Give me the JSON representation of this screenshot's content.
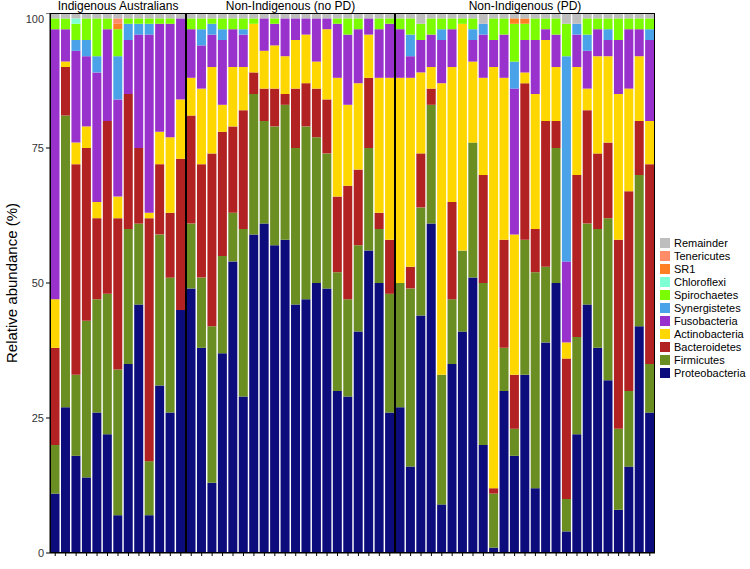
{
  "chart_data": [
    {
      "type": "bar",
      "title": "Indigenous Australians",
      "stacked": true,
      "ylabel": "Relative abundance (%)",
      "tick_labels": "y",
      "ylim": [
        0,
        100
      ],
      "yticks": [
        0,
        25,
        50,
        75,
        100
      ],
      "categories": [
        null,
        null,
        null,
        null,
        null,
        null,
        null,
        null,
        null,
        null,
        null,
        null,
        null
      ],
      "series": [
        {
          "name": "Proteobacteria",
          "color": "#0c0c7c",
          "values": [
            11,
            27,
            18,
            14,
            26,
            22,
            7,
            35,
            46,
            7,
            31,
            26,
            45
          ]
        },
        {
          "name": "Firmicutes",
          "color": "#6b8e23",
          "values": [
            9,
            54,
            15,
            29,
            21,
            26,
            27,
            25,
            15,
            10,
            28,
            25,
            0
          ]
        },
        {
          "name": "Bacteroidetes",
          "color": "#b22222",
          "values": [
            18,
            9,
            39,
            32,
            15,
            32,
            28,
            25,
            14,
            45,
            13,
            12,
            28
          ]
        },
        {
          "name": "Actinobacteria",
          "color": "#ffd700",
          "values": [
            9,
            1,
            4,
            4,
            3,
            0,
            4,
            0,
            0,
            1,
            6,
            14,
            11
          ]
        },
        {
          "name": "Fusobacteria",
          "color": "#9932cc",
          "values": [
            50,
            6,
            17,
            13,
            24,
            17,
            18,
            10,
            21,
            33,
            20,
            21,
            15
          ]
        },
        {
          "name": "Synergistetes",
          "color": "#4aa3e8",
          "values": [
            0,
            0,
            2,
            3,
            3,
            0,
            8,
            3,
            2,
            2,
            0,
            0,
            0
          ]
        },
        {
          "name": "Spirochaetes",
          "color": "#7cfc00",
          "values": [
            2,
            2,
            3,
            4,
            7,
            2,
            5,
            1,
            1,
            1,
            1,
            1,
            0
          ]
        },
        {
          "name": "Chloroflexi",
          "color": "#7fffd4",
          "values": [
            0,
            0,
            1,
            0,
            0,
            0,
            0,
            0,
            0,
            0,
            0,
            0,
            0
          ]
        },
        {
          "name": "SR1",
          "color": "#ff7f24",
          "values": [
            0,
            0,
            0,
            0,
            0,
            0,
            1,
            0,
            0,
            0,
            0,
            0,
            0
          ]
        },
        {
          "name": "Tenericutes",
          "color": "#ff8c69",
          "values": [
            0,
            0,
            0,
            0,
            0,
            0,
            1,
            0,
            0,
            0,
            0,
            0,
            0
          ]
        },
        {
          "name": "Remainder",
          "color": "#bebebe",
          "values": [
            1,
            1,
            1,
            1,
            1,
            1,
            1,
            1,
            1,
            1,
            1,
            1,
            1
          ]
        }
      ]
    },
    {
      "type": "bar",
      "title": "Non-Indigenous (no PD)",
      "stacked": true,
      "tick_labels": false,
      "ylim": [
        0,
        100
      ],
      "yticks": [
        0,
        25,
        50,
        75,
        100
      ],
      "categories": [
        null,
        null,
        null,
        null,
        null,
        null,
        null,
        null,
        null,
        null,
        null,
        null,
        null,
        null,
        null,
        null,
        null,
        null,
        null,
        null
      ],
      "series": [
        {
          "name": "Proteobacteria",
          "color": "#0c0c7c",
          "values": [
            49,
            38,
            13,
            37,
            54,
            29,
            59,
            61,
            57,
            58,
            46,
            47,
            50,
            49,
            30,
            29,
            41,
            56,
            50,
            26
          ]
        },
        {
          "name": "Firmicutes",
          "color": "#6b8e23",
          "values": [
            12,
            13,
            29,
            18,
            9,
            31,
            26,
            19,
            22,
            25,
            29,
            32,
            27,
            25,
            22,
            18,
            16,
            19,
            10,
            22
          ]
        },
        {
          "name": "Bacteroidetes",
          "color": "#b22222",
          "values": [
            20,
            21,
            32,
            23,
            16,
            22,
            4,
            6,
            7,
            2,
            11,
            8,
            9,
            10,
            14,
            21,
            14,
            13,
            3,
            10
          ]
        },
        {
          "name": "Actinobacteria",
          "color": "#ffd700",
          "values": [
            7,
            14,
            16,
            5,
            11,
            8,
            9,
            7,
            8,
            7,
            9,
            9,
            5,
            13,
            22,
            15,
            16,
            8,
            25,
            30
          ]
        },
        {
          "name": "Fusobacteria",
          "color": "#9932cc",
          "values": [
            9,
            8,
            6,
            12,
            7,
            6,
            0,
            6,
            4,
            7,
            4,
            3,
            8,
            2,
            10,
            13,
            10,
            3,
            9,
            10
          ]
        },
        {
          "name": "Synergistetes",
          "color": "#4aa3e8",
          "values": [
            0,
            3,
            2,
            2,
            0,
            1,
            0,
            0,
            0,
            0,
            0,
            0,
            0,
            0,
            0,
            0,
            0,
            0,
            0,
            0
          ]
        },
        {
          "name": "Spirochaetes",
          "color": "#7cfc00",
          "values": [
            2,
            2,
            1,
            2,
            2,
            2,
            1,
            0,
            1,
            0,
            0,
            0,
            0,
            0,
            1,
            3,
            2,
            0,
            2,
            1
          ]
        },
        {
          "name": "Chloroflexi",
          "color": "#7fffd4",
          "values": [
            0,
            0,
            0,
            0,
            0,
            0,
            0,
            0,
            0,
            0,
            0,
            0,
            0,
            0,
            0,
            0,
            0,
            0,
            0,
            0
          ]
        },
        {
          "name": "SR1",
          "color": "#ff7f24",
          "values": [
            0,
            0,
            0,
            0,
            0,
            0,
            0,
            0,
            0,
            0,
            0,
            0,
            0,
            0,
            0,
            0,
            0,
            0,
            0,
            0
          ]
        },
        {
          "name": "Tenericutes",
          "color": "#ff8c69",
          "values": [
            0,
            0,
            0,
            0,
            0,
            0,
            0,
            0,
            0,
            0,
            0,
            0,
            0,
            0,
            0,
            0,
            0,
            0,
            0,
            0
          ]
        },
        {
          "name": "Remainder",
          "color": "#bebebe",
          "values": [
            1,
            1,
            1,
            1,
            1,
            1,
            1,
            1,
            1,
            1,
            1,
            1,
            1,
            1,
            1,
            1,
            1,
            1,
            1,
            1
          ]
        }
      ]
    },
    {
      "type": "bar",
      "title": "Non-Indigenous (PD)",
      "stacked": true,
      "tick_labels": false,
      "legend": "right",
      "ylim": [
        0,
        100
      ],
      "yticks": [
        0,
        25,
        50,
        75,
        100
      ],
      "categories": [
        null,
        null,
        null,
        null,
        null,
        null,
        null,
        null,
        null,
        null,
        null,
        null,
        null,
        null,
        null,
        null,
        null,
        null,
        null,
        null,
        null,
        null,
        null,
        null,
        null
      ],
      "series": [
        {
          "name": "Proteobacteria",
          "color": "#0c0c7c",
          "values": [
            27,
            16,
            44,
            61,
            9,
            35,
            41,
            51,
            20,
            1,
            30,
            18,
            33,
            12,
            39,
            50,
            4,
            22,
            46,
            38,
            32,
            8,
            16,
            42,
            26
          ]
        },
        {
          "name": "Firmicutes",
          "color": "#6b8e23",
          "values": [
            23,
            33,
            20,
            22,
            24,
            12,
            15,
            25,
            30,
            10,
            8,
            5,
            25,
            40,
            14,
            25,
            6,
            18,
            15,
            22,
            30,
            15,
            14,
            28,
            9
          ]
        },
        {
          "name": "Bacteroidetes",
          "color": "#b22222",
          "values": [
            0,
            4,
            10,
            3,
            0,
            18,
            0,
            0,
            20,
            1,
            20,
            10,
            29,
            8,
            27,
            5,
            26,
            30,
            21,
            14,
            14,
            35,
            37,
            10,
            37
          ]
        },
        {
          "name": "Actinobacteria",
          "color": "#ffd700",
          "values": [
            38,
            35,
            15,
            4,
            54,
            25,
            42,
            15,
            18,
            78,
            30,
            26,
            2,
            25,
            15,
            10,
            3,
            20,
            4,
            18,
            16,
            27,
            19,
            12,
            8
          ]
        },
        {
          "name": "Fusobacteria",
          "color": "#9932cc",
          "values": [
            9,
            4,
            6,
            6,
            8,
            7,
            0,
            4,
            8,
            5,
            8,
            27,
            6,
            10,
            2,
            6,
            15,
            6,
            7,
            5,
            3,
            10,
            11,
            5,
            15
          ]
        },
        {
          "name": "Synergistetes",
          "color": "#4aa3e8",
          "values": [
            0,
            4,
            0,
            0,
            2,
            0,
            0,
            2,
            2,
            0,
            0,
            5,
            0,
            0,
            0,
            0,
            38,
            2,
            3,
            0,
            2,
            0,
            0,
            0,
            2
          ]
        },
        {
          "name": "Spirochaetes",
          "color": "#7cfc00",
          "values": [
            2,
            3,
            3,
            3,
            2,
            2,
            1,
            2,
            0,
            4,
            3,
            7,
            3,
            4,
            2,
            3,
            6,
            0,
            3,
            2,
            2,
            4,
            2,
            2,
            2
          ]
        },
        {
          "name": "Chloroflexi",
          "color": "#7fffd4",
          "values": [
            0,
            0,
            0,
            0,
            0,
            0,
            0,
            0,
            0,
            0,
            0,
            0,
            0,
            0,
            0,
            0,
            0,
            0,
            0,
            0,
            0,
            0,
            0,
            0,
            0
          ]
        },
        {
          "name": "SR1",
          "color": "#ff7f24",
          "values": [
            0,
            0,
            0,
            0,
            0,
            0,
            0,
            0,
            0,
            0,
            0,
            1,
            1,
            0,
            0,
            0,
            0,
            0,
            0,
            0,
            0,
            0,
            0,
            0,
            0
          ]
        },
        {
          "name": "Tenericutes",
          "color": "#ff8c69",
          "values": [
            0,
            0,
            0,
            0,
            0,
            0,
            0,
            0,
            0,
            0,
            0,
            0,
            0,
            0,
            0,
            0,
            0,
            0,
            0,
            0,
            0,
            0,
            0,
            0,
            0
          ]
        },
        {
          "name": "Remainder",
          "color": "#bebebe",
          "values": [
            1,
            1,
            2,
            1,
            1,
            1,
            1,
            1,
            2,
            1,
            1,
            1,
            1,
            1,
            1,
            1,
            2,
            2,
            1,
            1,
            1,
            1,
            1,
            1,
            1
          ]
        }
      ]
    }
  ]
}
